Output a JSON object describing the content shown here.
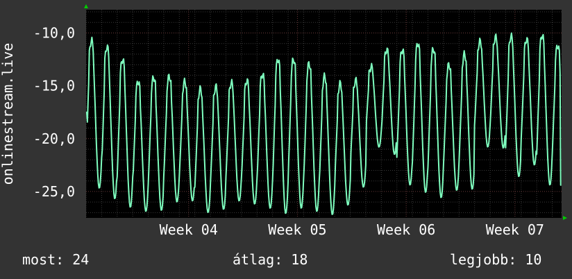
{
  "chart_data": {
    "type": "line",
    "ylabel": "onlinestream.live",
    "ylim": [
      -27.5,
      -7.8
    ],
    "yticks": [
      {
        "value": -10,
        "label": "-10,0"
      },
      {
        "value": -15,
        "label": "-15,0"
      },
      {
        "value": -20,
        "label": "-20,0"
      },
      {
        "value": -25,
        "label": "-25,0"
      }
    ],
    "xlim": [
      0,
      30.6
    ],
    "xticks": [
      {
        "value": 6.6,
        "label": "Week 04"
      },
      {
        "value": 13.6,
        "label": "Week 05"
      },
      {
        "value": 20.6,
        "label": "Week 06"
      },
      {
        "value": 27.6,
        "label": "Week 07"
      }
    ],
    "grid": true,
    "line_color": "#7FFFBF",
    "series": [
      {
        "peaks": [
          -10.7,
          -11.3,
          -12.5,
          -14.6,
          -14.2,
          -14.1,
          -14.6,
          -15.3,
          -15.1,
          -14.7,
          -14.5,
          -13.9,
          -12.5,
          -12.5,
          -12.9,
          -14.1,
          -14.8,
          -14.5,
          -13.2,
          -11.6,
          -11.6,
          -11.0,
          -11.5,
          -13.0,
          -12.0,
          -10.8,
          -10.4,
          -10.3,
          -10.6,
          -10.2,
          -11.2
        ],
        "troughs": [
          -24.7,
          -25.7,
          -26.5,
          -26.9,
          -26.8,
          -26.0,
          -25.9,
          -27.0,
          -26.7,
          -25.9,
          -26.2,
          -26.6,
          -27.1,
          -26.6,
          -26.9,
          -27.2,
          -26.3,
          -24.6,
          -20.8,
          -21.5,
          -24.4,
          -25.1,
          -25.6,
          -24.9,
          -24.8,
          -20.8,
          -20.9,
          -23.6,
          -22.5,
          -24.4,
          -24.0
        ],
        "start": -17.5,
        "end": -24.4,
        "min": -27.2,
        "max": -9.9
      }
    ]
  },
  "stats": {
    "current": "most: 24",
    "average": "átlag: 18",
    "best": "legjobb: 10"
  },
  "colors": {
    "background": "#333333",
    "plot_background": "#000000",
    "grid_minor": "#3a3a3a",
    "grid_major": "#6a3a3a",
    "axis_arrow": "#00cc00",
    "line": "#7FFFBF"
  }
}
